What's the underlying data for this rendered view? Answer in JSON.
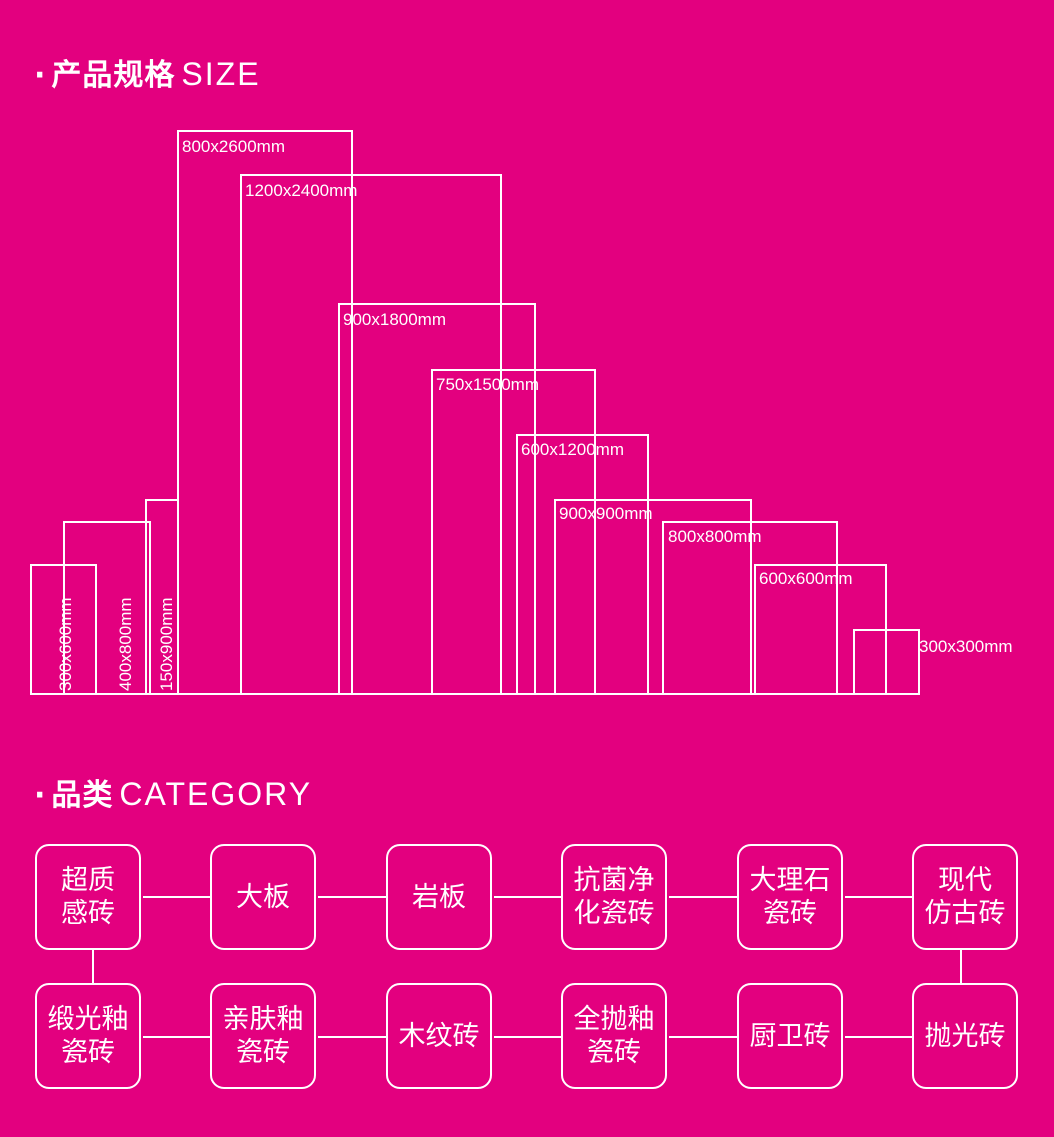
{
  "size_section": {
    "bullet": "·",
    "title_zh": "产品规格",
    "title_en": "SIZE"
  },
  "category_section": {
    "bullet": "·",
    "title_zh": "品类",
    "title_en": "CATEGORY"
  },
  "tile_sizes": [
    {
      "label": "300x600mm",
      "width_mm": 300,
      "height_mm": 600
    },
    {
      "label": "400x800mm",
      "width_mm": 400,
      "height_mm": 800
    },
    {
      "label": "150x900mm",
      "width_mm": 150,
      "height_mm": 900
    },
    {
      "label": "800x2600mm",
      "width_mm": 800,
      "height_mm": 2600
    },
    {
      "label": "1200x2400mm",
      "width_mm": 1200,
      "height_mm": 2400
    },
    {
      "label": "900x1800mm",
      "width_mm": 900,
      "height_mm": 1800
    },
    {
      "label": "750x1500mm",
      "width_mm": 750,
      "height_mm": 1500
    },
    {
      "label": "600x1200mm",
      "width_mm": 600,
      "height_mm": 1200
    },
    {
      "label": "900x900mm",
      "width_mm": 900,
      "height_mm": 900
    },
    {
      "label": "800x800mm",
      "width_mm": 800,
      "height_mm": 800
    },
    {
      "label": "600x600mm",
      "width_mm": 600,
      "height_mm": 600
    },
    {
      "label": "300x300mm",
      "width_mm": 300,
      "height_mm": 300
    }
  ],
  "categories": [
    {
      "label": "超质\n感砖"
    },
    {
      "label": "大板"
    },
    {
      "label": "岩板"
    },
    {
      "label": "抗菌净\n化瓷砖"
    },
    {
      "label": "大理石\n瓷砖"
    },
    {
      "label": "现代\n仿古砖"
    },
    {
      "label": "缎光釉\n瓷砖"
    },
    {
      "label": "亲肤釉\n瓷砖"
    },
    {
      "label": "木纹砖"
    },
    {
      "label": "全抛釉\n瓷砖"
    },
    {
      "label": "厨卫砖"
    },
    {
      "label": "抛光砖"
    }
  ],
  "colors": {
    "background": "#e3007f",
    "line": "#ffffff"
  }
}
